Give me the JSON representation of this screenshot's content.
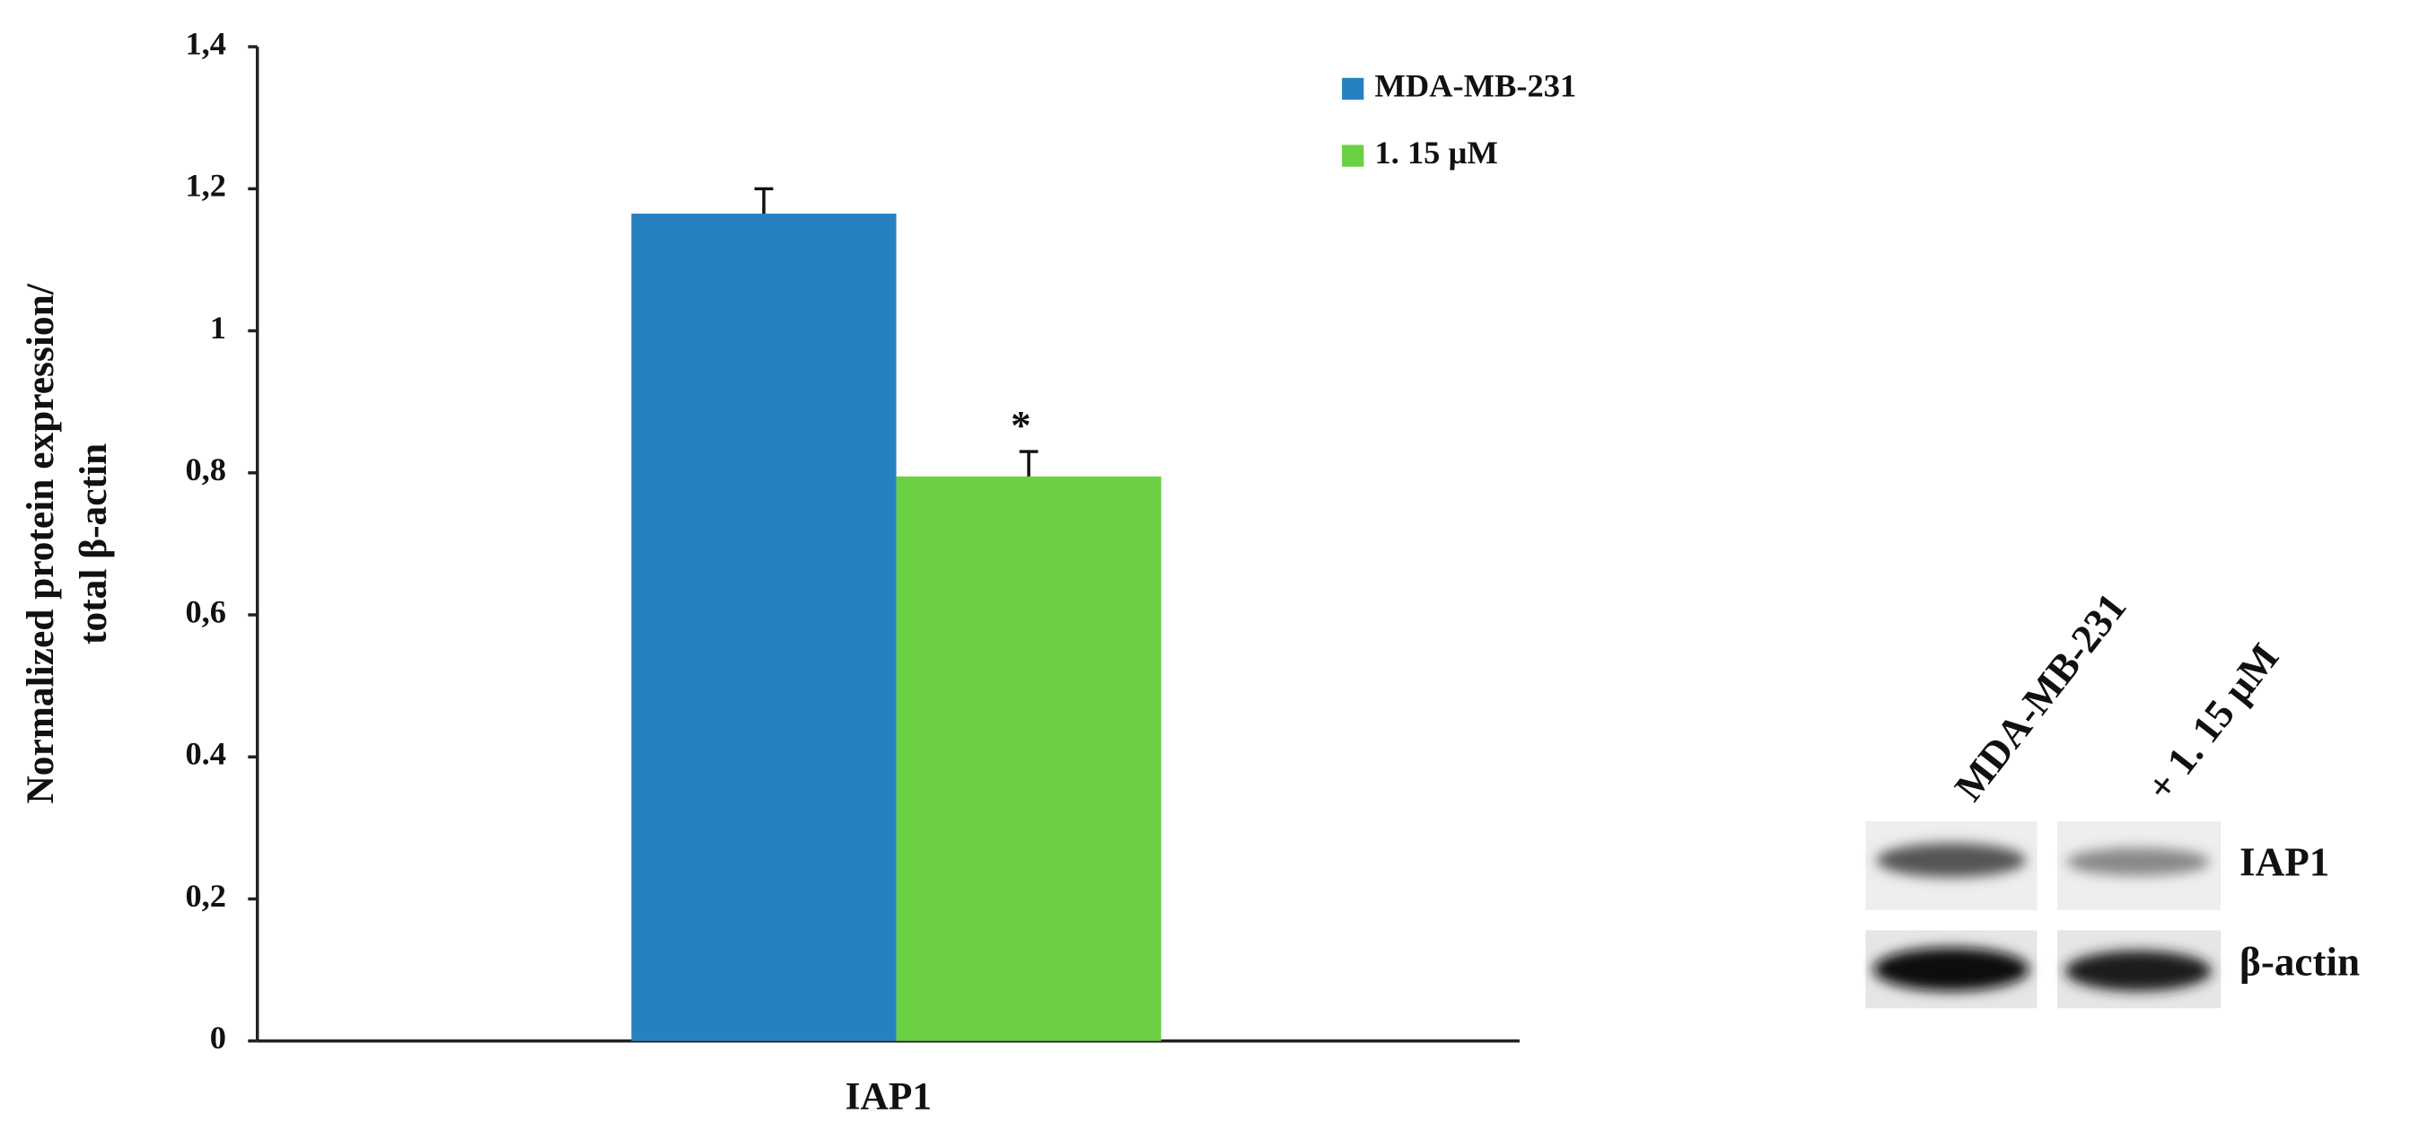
{
  "chart_data": {
    "type": "bar",
    "ylabel": [
      "Normalized protein expression/",
      "total β-actin"
    ],
    "categories": [
      "IAP1"
    ],
    "series": [
      {
        "name": "MDA-MB-231",
        "color": "#2781c0",
        "values": [
          1.165
        ],
        "errors": [
          0.035
        ]
      },
      {
        "name": "1. 15 µM",
        "color": "#6cd044",
        "values": [
          0.795
        ],
        "errors": [
          0.035
        ]
      }
    ],
    "annotation": "*",
    "ylim": [
      0,
      1.4
    ],
    "yticks": [
      0,
      {
        "value": 0.2,
        "label": "0,2"
      },
      {
        "value": 0.4,
        "label": "0.4"
      },
      {
        "value": 0.6,
        "label": "0,6"
      },
      {
        "value": 0.8,
        "label": "0,8"
      },
      1,
      {
        "value": 1.2,
        "label": "1,2"
      },
      {
        "value": 1.4,
        "label": "1,4"
      }
    ],
    "legend": "top-right"
  },
  "blot": {
    "lane_labels": [
      "MDA-MB-231",
      "+ 1. 15 µM"
    ],
    "band_labels": [
      "IAP1",
      "β-actin"
    ]
  }
}
